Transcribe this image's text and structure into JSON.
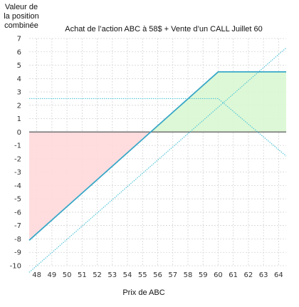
{
  "chart_data": {
    "type": "line",
    "title": "Achat de l’action ABC à 58$ + Vente d’un CALL Juillet 60",
    "ylabel_lines": [
      "Valeur de",
      "la position",
      "combinée"
    ],
    "xlabel": "Prix de ABC",
    "xlim": [
      47.5,
      64.5
    ],
    "ylim": [
      -10,
      7
    ],
    "x_ticks": [
      48,
      49,
      50,
      51,
      52,
      53,
      54,
      55,
      56,
      57,
      58,
      59,
      60,
      61,
      62,
      63,
      64
    ],
    "y_ticks": [
      7,
      6,
      5,
      4,
      3,
      2,
      1,
      0,
      -1,
      -2,
      -3,
      -4,
      -5,
      -6,
      -7,
      -8,
      -9,
      -10
    ],
    "grid": true,
    "zero_line": 0,
    "series": [
      {
        "x": [
          47.5,
          60,
          64.5
        ],
        "y": [
          -8.1,
          4.5,
          4.5
        ],
        "style": "solid"
      },
      {
        "x": [
          47.5,
          64.5
        ],
        "y": [
          -10.5,
          6.3
        ],
        "style": "dotted"
      },
      {
        "x": [
          47.5,
          60,
          64.5
        ],
        "y": [
          2.5,
          2.5,
          -1.8
        ],
        "style": "dotted"
      }
    ],
    "shaded_regions": [
      {
        "kind": "loss",
        "x_from": 47.5,
        "x_to": 55.6,
        "color": "#ffd9dc"
      },
      {
        "kind": "gain",
        "x_from": 55.6,
        "x_to": 64.5,
        "color": "#d9f7d2"
      }
    ],
    "colors": {
      "solid": "#3aa8c8",
      "dotted": "#54c6d9",
      "zero": "#777777",
      "grid": "#d4d4d4"
    }
  }
}
